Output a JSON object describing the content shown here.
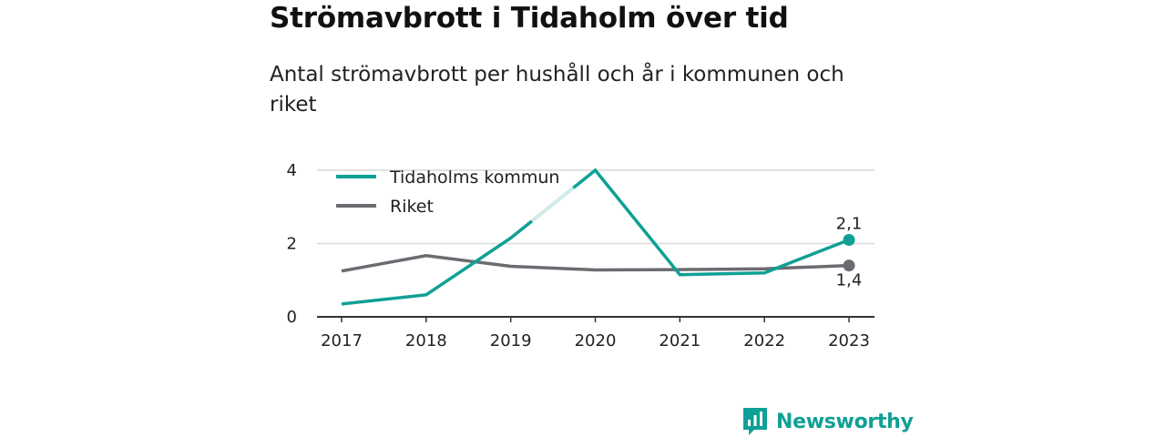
{
  "title": "Strömavbrott i Tidaholm över tid",
  "subtitle": "Antal strömavbrott per hushåll och år i kommunen och riket",
  "brand": "Newsworthy",
  "colors": {
    "kommun": "#0fa095",
    "riket": "#6c6b71",
    "grid": "#d9d9d9",
    "axis": "#333333"
  },
  "chart_data": {
    "type": "line",
    "x": [
      "2017",
      "2018",
      "2019",
      "2020",
      "2021",
      "2022",
      "2023"
    ],
    "y_ticks": [
      "0",
      "2",
      "4"
    ],
    "ylim": [
      0,
      4
    ],
    "grid": true,
    "legend_position": "top-left",
    "series": [
      {
        "name": "Tidaholms kommun",
        "values": [
          0.35,
          0.6,
          2.15,
          4.0,
          1.15,
          1.2,
          2.1
        ],
        "end_label": "2,1"
      },
      {
        "name": "Riket",
        "values": [
          1.25,
          1.67,
          1.38,
          1.28,
          1.29,
          1.31,
          1.4
        ],
        "end_label": "1,4"
      }
    ]
  }
}
